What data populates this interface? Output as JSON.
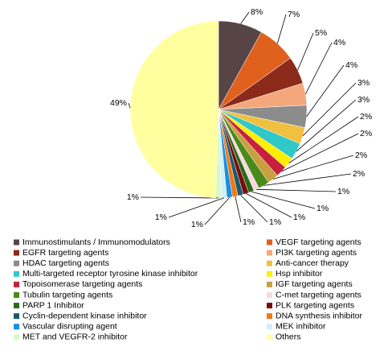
{
  "chart_data": {
    "type": "pie",
    "categories": [
      "Immunostimulants / Immunomodulators",
      "VEGF targeting agents",
      "EGFR targeting agents",
      "PI3K targeting agents",
      "HDAC targeting agents",
      "Anti-cancer therapy",
      "Multi-targeted receptor tyrosine kinase inhibitor",
      "Hsp inhibitor",
      "Topoisomerase targeting agents",
      "IGF targeting agents",
      "Tubulin targeting agents",
      "C-met targeting agents",
      "PARP 1 Inhibitor",
      "PLK targeting agents",
      "Cyclin-dependent kinase inhibitor",
      "DNA synthesis inhibitor",
      "Vascular disrupting agent",
      "MEK inhibitor",
      "MET and VEGFR-2 inhibitor",
      "Others"
    ],
    "values": [
      8,
      7,
      5,
      4,
      4,
      3,
      3,
      2,
      2,
      2,
      2,
      1,
      1,
      1,
      1,
      1,
      1,
      1,
      1,
      49
    ],
    "value_labels": [
      "8%",
      "7%",
      "5%",
      "4%",
      "4%",
      "3%",
      "3%",
      "2%",
      "2%",
      "2%",
      "2%",
      "1%",
      "1%",
      "1%",
      "1%",
      "1%",
      "1%",
      "1%",
      "1%",
      "49%"
    ],
    "colors": [
      "#574545",
      "#e0601e",
      "#8b2a1a",
      "#f4a77a",
      "#8c8c8c",
      "#f0c040",
      "#30c8c8",
      "#ffee00",
      "#c8203c",
      "#c8a040",
      "#4a8a1a",
      "#f8d8e0",
      "#2a6a1a",
      "#7a0a0a",
      "#1a5a6a",
      "#f07818",
      "#1890e0",
      "#d0f0f8",
      "#d8f8c8",
      "#ffffa0"
    ],
    "legend": "bottom"
  }
}
